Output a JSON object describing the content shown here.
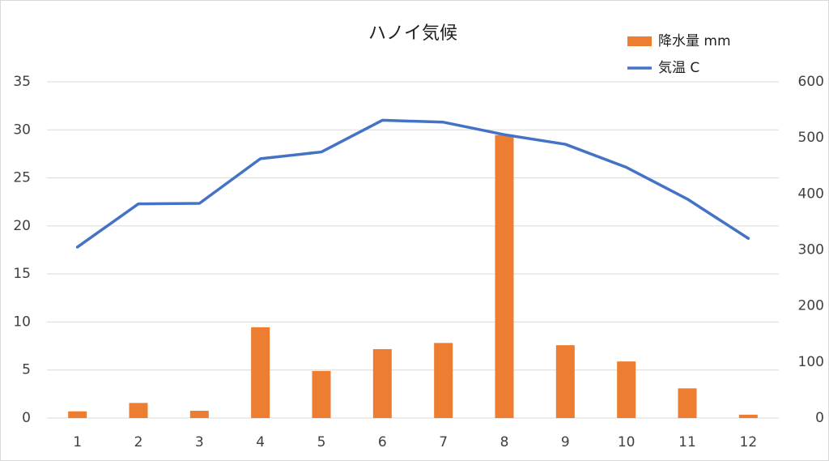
{
  "chart_data": {
    "type": "bar-line",
    "title": "ハノイ気候",
    "categories": [
      "1",
      "2",
      "3",
      "4",
      "5",
      "6",
      "7",
      "8",
      "9",
      "10",
      "11",
      "12"
    ],
    "series": [
      {
        "name": "降水量  mm",
        "type": "bar",
        "axis": "y2",
        "color": "#ed7d31",
        "values": [
          12,
          27,
          13,
          162,
          84,
          123,
          134,
          505,
          130,
          101,
          53,
          6
        ]
      },
      {
        "name": "気温  C",
        "type": "line",
        "color": "#4472c4",
        "values": [
          17.8,
          22.3,
          22.35,
          27.0,
          27.7,
          31.0,
          30.8,
          29.5,
          28.5,
          26.1,
          22.8,
          18.7
        ]
      }
    ],
    "ylim": [
      0,
      35
    ],
    "yticks": [
      0,
      5,
      10,
      15,
      20,
      25,
      30,
      35
    ],
    "y2lim": [
      0,
      600
    ],
    "y2ticks": [
      0,
      100,
      200,
      300,
      400,
      500,
      600
    ],
    "grid": true,
    "legend": "top-right"
  }
}
